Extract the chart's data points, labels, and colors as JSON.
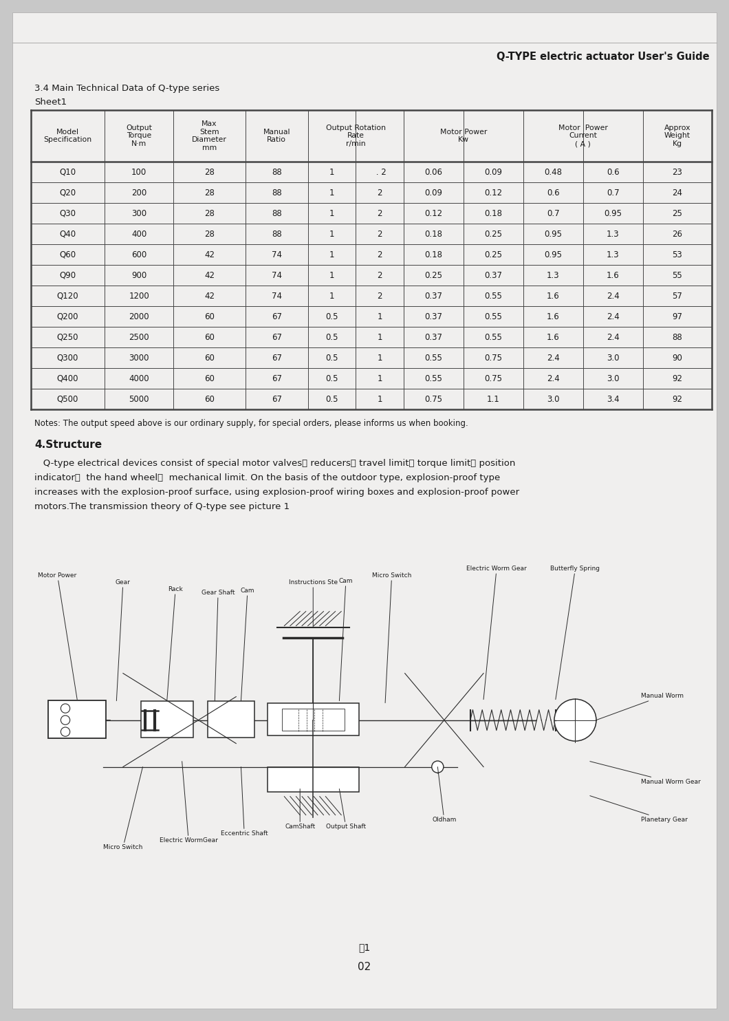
{
  "page_title": "Q-TYPE electric actuator User's Guide",
  "section_title": "3.4 Main Technical Data of Q-type series",
  "sheet": "Sheet1",
  "rows": [
    [
      "Q10",
      "100",
      "28",
      "88",
      "1",
      " . 2",
      "0.06",
      "0.09",
      "0.48",
      "0.6",
      "23"
    ],
    [
      "Q20",
      "200",
      "28",
      "88",
      "1",
      "2",
      "0.09",
      "0.12",
      "0.6",
      "0.7",
      "24"
    ],
    [
      "Q30",
      "300",
      "28",
      "88",
      "1",
      "2",
      "0.12",
      "0.18",
      "0.7",
      "0.95",
      "25"
    ],
    [
      "Q40",
      "400",
      "28",
      "88",
      "1",
      "2",
      "0.18",
      "0.25",
      "0.95",
      "1.3",
      "26"
    ],
    [
      "Q60",
      "600",
      "42",
      "74",
      "1",
      "2",
      "0.18",
      "0.25",
      "0.95",
      "1.3",
      "53"
    ],
    [
      "Q90",
      "900",
      "42",
      "74",
      "1",
      "2",
      "0.25",
      "0.37",
      "1.3",
      "1.6",
      "55"
    ],
    [
      "Q120",
      "1200",
      "42",
      "74",
      "1",
      "2",
      "0.37",
      "0.55",
      "1.6",
      "2.4",
      "57"
    ],
    [
      "Q200",
      "2000",
      "60",
      "67",
      "0.5",
      "1",
      "0.37",
      "0.55",
      "1.6",
      "2.4",
      "97"
    ],
    [
      "Q250",
      "2500",
      "60",
      "67",
      "0.5",
      "1",
      "0.37",
      "0.55",
      "1.6",
      "2.4",
      "88"
    ],
    [
      "Q300",
      "3000",
      "60",
      "67",
      "0.5",
      "1",
      "0.55",
      "0.75",
      "2.4",
      "3.0",
      "90"
    ],
    [
      "Q400",
      "4000",
      "60",
      "67",
      "0.5",
      "1",
      "0.55",
      "0.75",
      "2.4",
      "3.0",
      "92"
    ],
    [
      "Q500",
      "5000",
      "60",
      "67",
      "0.5",
      "1",
      "0.75",
      "1.1",
      "3.0",
      "3.4",
      "92"
    ]
  ],
  "notes": "Notes: The output speed above is our ordinary supply, for special orders, please informs us when booking.",
  "section4_title": "4.Structure",
  "section4_lines": [
    "   Q-type electrical devices consist of special motor valves、 reducers、 travel limit、 torque limit、 position",
    "indicator、  the hand wheel、  mechanical limit. On the basis of the outdoor type, explosion-proof type",
    "increases with the explosion-proof surface, using explosion-proof wiring boxes and explosion-proof power",
    "motors.The transmission theory of Q-type see picture 1"
  ],
  "figure_caption": "图1",
  "page_number": "02",
  "page_bg": "#f0efee",
  "outer_bg": "#c8c8c8",
  "text_color": "#1a1a1a",
  "line_color": "#2a2a2a",
  "table_line_color": "#444444"
}
